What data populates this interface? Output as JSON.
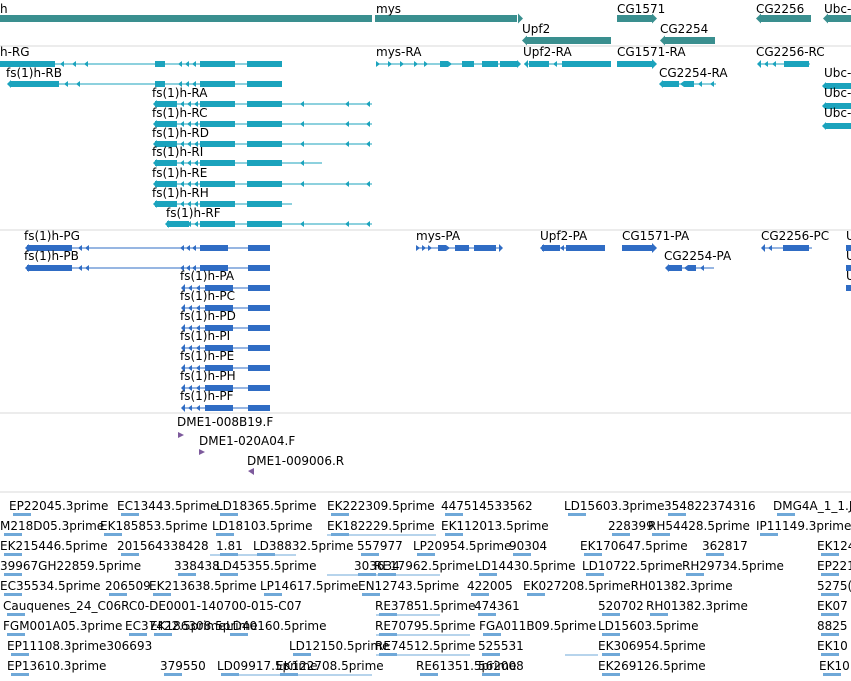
{
  "colors": {
    "gene": "#3a8f8f",
    "transcript_rna": "#1ba3bd",
    "transcript_pep": "#2f6cc4",
    "bac_end": "#7d5a9c",
    "est": "#6fa8d8",
    "separator": "#d9d9d9"
  },
  "tracks": {
    "genes": [
      {
        "label": "h"
      },
      {
        "label": "mys"
      },
      {
        "label": "Upf2"
      },
      {
        "label": "CG1571"
      },
      {
        "label": "CG2254"
      },
      {
        "label": "CG2256"
      },
      {
        "label": "Ubc-"
      }
    ],
    "mrna": [
      {
        "label": "h-RG"
      },
      {
        "label": "fs(1)h-RB"
      },
      {
        "label": "fs(1)h-RA"
      },
      {
        "label": "fs(1)h-RC"
      },
      {
        "label": "fs(1)h-RD"
      },
      {
        "label": "fs(1)h-RI"
      },
      {
        "label": "fs(1)h-RE"
      },
      {
        "label": "fs(1)h-RH"
      },
      {
        "label": "fs(1)h-RF"
      },
      {
        "label": "mys-RA"
      },
      {
        "label": "Upf2-RA"
      },
      {
        "label": "CG1571-RA"
      },
      {
        "label": "CG2254-RA"
      },
      {
        "label": "CG2256-RC"
      },
      {
        "label": "Ubc-"
      },
      {
        "label": "Ubc-"
      },
      {
        "label": "Ubc-"
      }
    ],
    "proteins": [
      {
        "label": "fs(1)h-PG"
      },
      {
        "label": "fs(1)h-PB"
      },
      {
        "label": "fs(1)h-PA"
      },
      {
        "label": "fs(1)h-PC"
      },
      {
        "label": "fs(1)h-PD"
      },
      {
        "label": "fs(1)h-PI"
      },
      {
        "label": "fs(1)h-PE"
      },
      {
        "label": "fs(1)h-PH"
      },
      {
        "label": "fs(1)h-PF"
      },
      {
        "label": "mys-PA"
      },
      {
        "label": "Upf2-PA"
      },
      {
        "label": "CG1571-PA"
      },
      {
        "label": "CG2254-PA"
      },
      {
        "label": "CG2256-PC"
      },
      {
        "label": "U"
      },
      {
        "label": "U"
      },
      {
        "label": "U"
      }
    ],
    "bac_ends": [
      {
        "label": "DME1-008B19.F"
      },
      {
        "label": "DME1-020A04.F"
      },
      {
        "label": "DME1-009006.R"
      }
    ],
    "ests": [
      {
        "label": "EP22045.3prime"
      },
      {
        "label": "EC13443.5prime"
      },
      {
        "label": "LD18365.5prime"
      },
      {
        "label": "EK222309.5prime"
      },
      {
        "label": "447514533562"
      },
      {
        "label": "LD15603.3prime"
      },
      {
        "label": "354822374316"
      },
      {
        "label": "DMG4A_1_1.J("
      },
      {
        "label": "M218D05.3prime"
      },
      {
        "label": "EK185853.5prime"
      },
      {
        "label": "LD18103.5prime"
      },
      {
        "label": "EK182229.5prime"
      },
      {
        "label": "EK112013.5prime"
      },
      {
        "label": "228399"
      },
      {
        "label": "RH54428.5prime"
      },
      {
        "label": "IP11149.3prime"
      },
      {
        "label": "EK215446.5prime"
      },
      {
        "label": "201564338428"
      },
      {
        "label": "1.81"
      },
      {
        "label": "LD38832.5prime"
      },
      {
        "label": "557977"
      },
      {
        "label": "LP20954.5prime"
      },
      {
        "label": "90304"
      },
      {
        "label": "EK170647.5prime"
      },
      {
        "label": "362817"
      },
      {
        "label": "EK124"
      },
      {
        "label": "39967GH22859.5prime"
      },
      {
        "label": "338438"
      },
      {
        "label": "LD45355.5prime"
      },
      {
        "label": "303634"
      },
      {
        "label": "RE17962.5prime"
      },
      {
        "label": "LD14430.5prime"
      },
      {
        "label": "LD10722.5prime"
      },
      {
        "label": "RH29734.5prime"
      },
      {
        "label": "EP221"
      },
      {
        "label": "EC35534.5prime"
      },
      {
        "label": "206509"
      },
      {
        "label": "EK213638.5prime"
      },
      {
        "label": "LP14617.5prime"
      },
      {
        "label": "EN12743.5prime"
      },
      {
        "label": "422005"
      },
      {
        "label": "EK027208.5primeRH01382.3prime"
      },
      {
        "label": "5275("
      },
      {
        "label": "Cauquenes_24_C06RC0-DE0001-140700-015-C07"
      },
      {
        "label": "RE37851.5prime"
      },
      {
        "label": "474361"
      },
      {
        "label": "520702"
      },
      {
        "label": "RH01382.3prime"
      },
      {
        "label": "EK07"
      },
      {
        "label": "FGM001A05.3prime"
      },
      {
        "label": "EC37422.5prime"
      },
      {
        "label": "EK186308.5prime"
      },
      {
        "label": "LD40160.5prime"
      },
      {
        "label": "RE70795.5prime"
      },
      {
        "label": "FGA011B09.5prime"
      },
      {
        "label": "LD15603.5prime"
      },
      {
        "label": "8825"
      },
      {
        "label": "EP11108.3prime306693"
      },
      {
        "label": "LD12150.5prime"
      },
      {
        "label": "RE74512.5prime"
      },
      {
        "label": "525531"
      },
      {
        "label": "EK306954.5prime"
      },
      {
        "label": "EK10"
      },
      {
        "label": "EP13610.3prime"
      },
      {
        "label": "379550"
      },
      {
        "label": "LD09917.5prime"
      },
      {
        "label": "EK122708.5prime"
      },
      {
        "label": "RE61351.5prime"
      },
      {
        "label": "562008"
      },
      {
        "label": "EK269126.5prime"
      },
      {
        "label": "EK10"
      }
    ]
  }
}
